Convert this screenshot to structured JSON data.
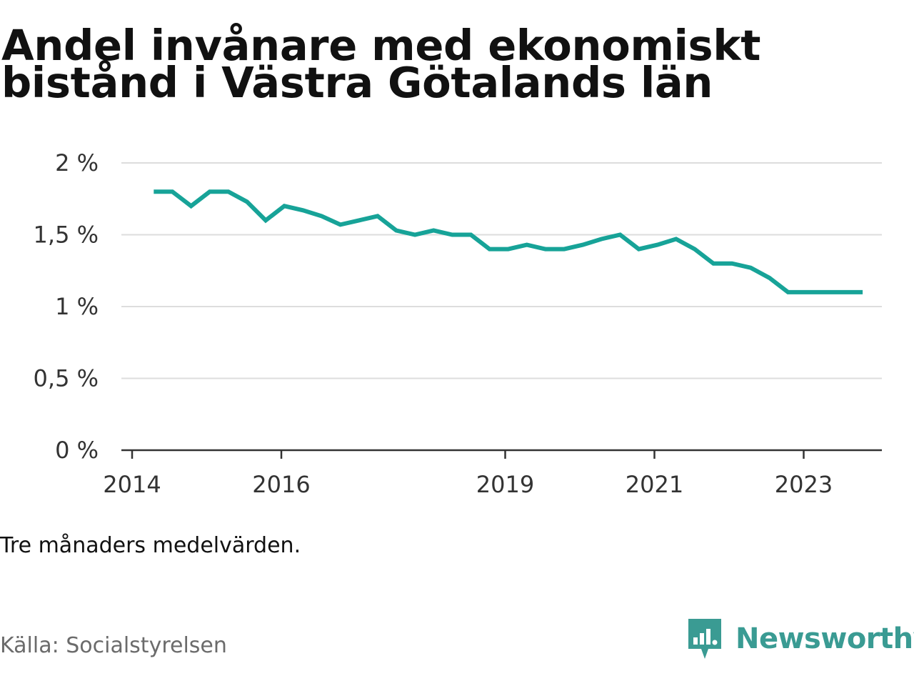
{
  "header": {
    "title_line1": "Andel invånare med ekonomiskt",
    "title_line2": "bistånd i Västra Götalands län"
  },
  "footer": {
    "note": "Tre månaders medelvärden.",
    "source": "Källa: Socialstyrelsen",
    "brand": "Newsworthy"
  },
  "colors": {
    "line": "#17a398",
    "grid": "#dddddd",
    "axis": "#333333",
    "brand": "#3a9b93"
  },
  "chart_data": {
    "type": "line",
    "title": "Andel invånare med ekonomiskt bistånd i Västra Götalands län",
    "xlabel": "",
    "ylabel": "",
    "ylim": [
      0,
      2
    ],
    "xlim": [
      2014,
      2024.5
    ],
    "yticks": [
      {
        "value": 0,
        "label": "0 %"
      },
      {
        "value": 0.5,
        "label": "0,5 %"
      },
      {
        "value": 1,
        "label": "1 %"
      },
      {
        "value": 1.5,
        "label": "1,5 %"
      },
      {
        "value": 2,
        "label": "2 %"
      }
    ],
    "xticks": [
      {
        "value": 2014,
        "label": "2014"
      },
      {
        "value": 2016,
        "label": "2016"
      },
      {
        "value": 2019,
        "label": "2019"
      },
      {
        "value": 2021,
        "label": "2021"
      },
      {
        "value": 2023,
        "label": "2023"
      }
    ],
    "grid": true,
    "series": [
      {
        "x": [
          2014.29,
          2014.54,
          2014.79,
          2015.04,
          2015.29,
          2015.54,
          2015.79,
          2016.04,
          2016.29,
          2016.54,
          2016.79,
          2017.04,
          2017.29,
          2017.54,
          2017.79,
          2018.04,
          2018.29,
          2018.54,
          2018.79,
          2019.04,
          2019.29,
          2019.54,
          2019.79,
          2020.04,
          2020.29,
          2020.54,
          2020.79,
          2021.04,
          2021.29,
          2021.54,
          2021.79,
          2022.04,
          2022.29,
          2022.54,
          2022.79,
          2023.04,
          2023.29,
          2023.54,
          2023.79
        ],
        "values": [
          1.8,
          1.8,
          1.7,
          1.8,
          1.8,
          1.73,
          1.6,
          1.7,
          1.67,
          1.63,
          1.57,
          1.6,
          1.63,
          1.53,
          1.5,
          1.53,
          1.5,
          1.5,
          1.4,
          1.4,
          1.43,
          1.4,
          1.4,
          1.43,
          1.47,
          1.5,
          1.4,
          1.43,
          1.47,
          1.4,
          1.3,
          1.3,
          1.27,
          1.2,
          1.1,
          1.1,
          1.1,
          1.1,
          1.1
        ]
      }
    ]
  }
}
